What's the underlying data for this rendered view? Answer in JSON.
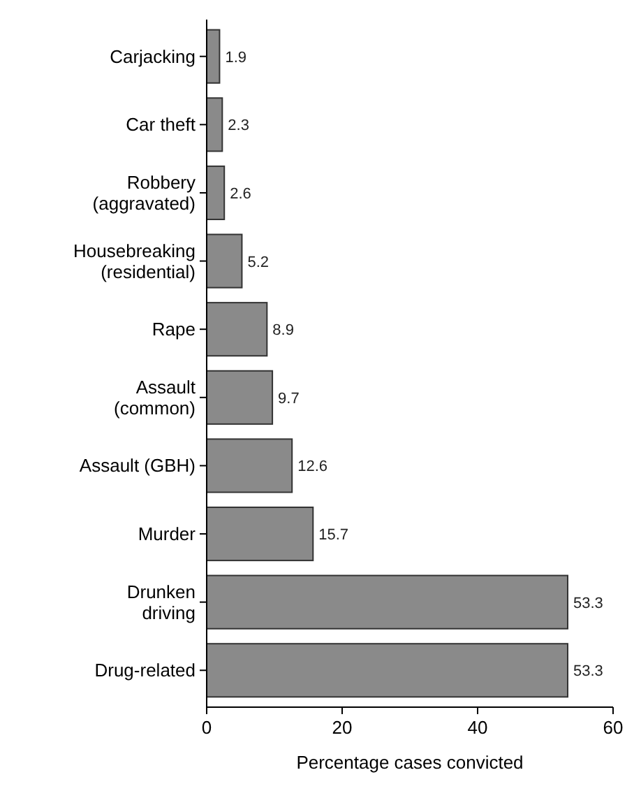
{
  "chart_data": {
    "type": "bar",
    "orientation": "horizontal",
    "xlabel": "Percentage cases convicted",
    "categories": [
      "Carjacking",
      "Car theft",
      "Robbery (aggravated)",
      "Housebreaking (residential)",
      "Rape",
      "Assault (common)",
      "Assault (GBH)",
      "Murder",
      "Drunken driving",
      "Drug-related"
    ],
    "values": [
      1.9,
      2.3,
      2.6,
      5.2,
      8.9,
      9.7,
      12.6,
      15.7,
      53.3,
      53.3
    ],
    "color": "#8a8a8a",
    "xlim": [
      0,
      60
    ],
    "xticks": [
      0,
      20,
      40,
      60
    ],
    "data_labels": true,
    "grid": false
  }
}
